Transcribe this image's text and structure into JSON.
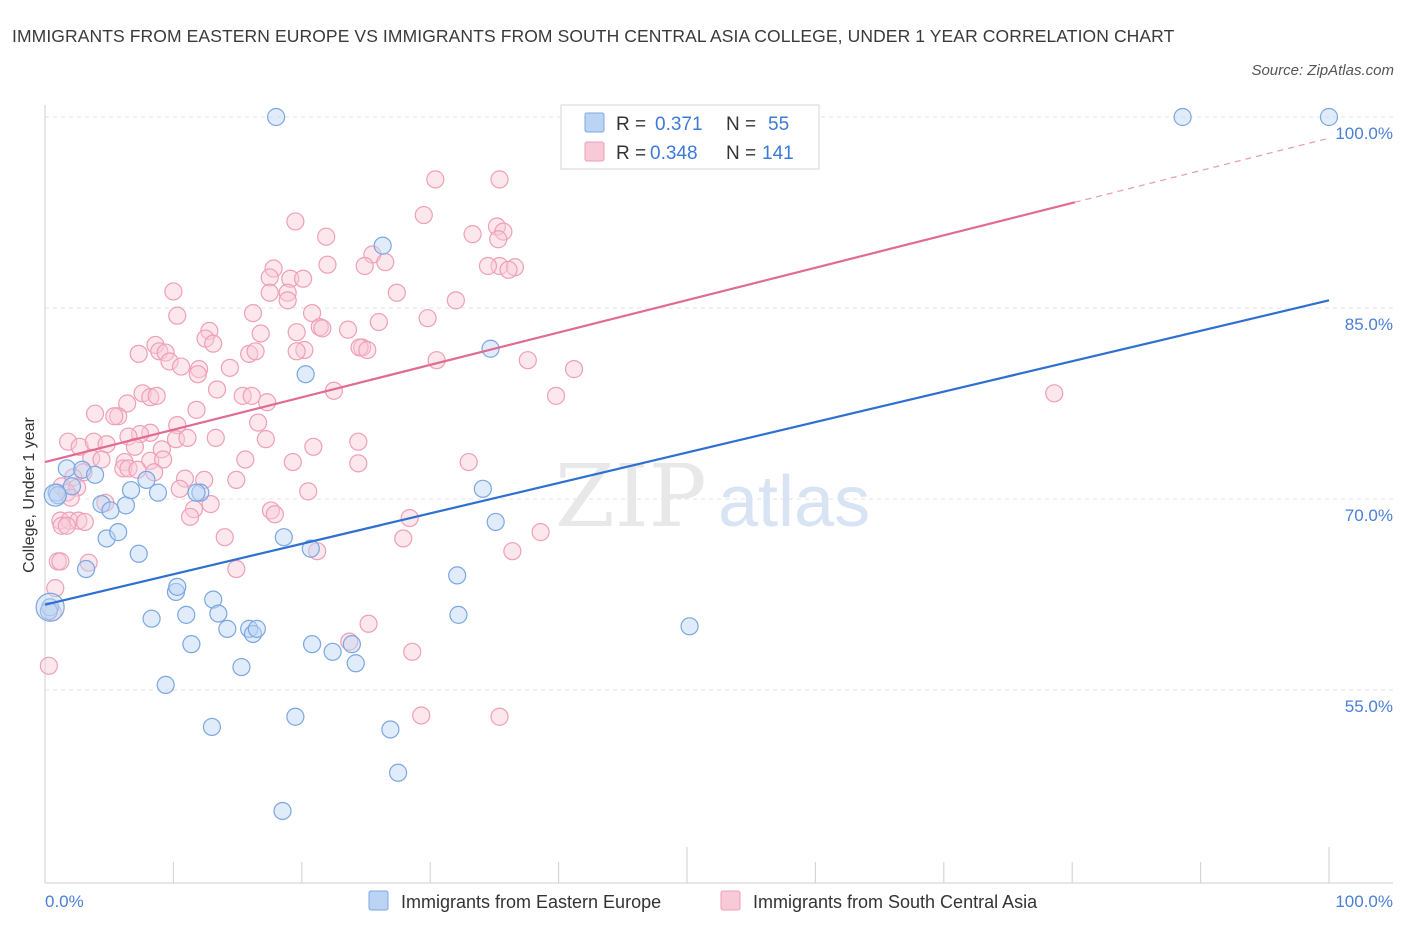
{
  "title": "IMMIGRANTS FROM EASTERN EUROPE VS IMMIGRANTS FROM SOUTH CENTRAL ASIA COLLEGE, UNDER 1 YEAR CORRELATION CHART",
  "source": "Source: ZipAtlas.com",
  "watermark": {
    "part1": "ZIP",
    "part2": "atlas"
  },
  "legend": {
    "r_label": "R =",
    "n_label": "N =",
    "rows": [
      {
        "r": "0.371",
        "n": "55",
        "color": "#a9c8f0"
      },
      {
        "r": "0.348",
        "n": "141",
        "color": "#f5b8c9"
      }
    ]
  },
  "bottom_legend": [
    {
      "label": "Immigrants from Eastern Europe",
      "color": "#a9c8f0"
    },
    {
      "label": "Immigrants from South Central Asia",
      "color": "#f5b8c9"
    }
  ],
  "chart_data": {
    "type": "scatter",
    "title": "IMMIGRANTS FROM EASTERN EUROPE VS IMMIGRANTS FROM SOUTH CENTRAL ASIA COLLEGE, UNDER 1 YEAR CORRELATION CHART",
    "xlabel": "",
    "ylabel": "College, Under 1 year",
    "xlim": [
      0,
      100
    ],
    "ylim": [
      40,
      100
    ],
    "x_tick_labels": [
      "0.0%",
      "100.0%"
    ],
    "y_ticks": [
      55,
      70,
      85,
      100
    ],
    "y_tick_labels": [
      "55.0%",
      "70.0%",
      "85.0%",
      "100.0%"
    ],
    "grid": true,
    "colors": {
      "blue": "#7aa7e3",
      "blue_line": "#2e6fd1",
      "pink": "#ef9fb8",
      "pink_line": "#e06b93"
    },
    "series": [
      {
        "name": "Immigrants from Eastern Europe",
        "color": "blue",
        "trend": {
          "x0": 0,
          "y0": 61.7,
          "x1": 100,
          "y1": 85.6
        },
        "points": [
          [
            18.0,
            100.0
          ],
          [
            88.6,
            100.0
          ],
          [
            100.0,
            100.0
          ],
          [
            1.7,
            72.4
          ],
          [
            2.1,
            71.0
          ],
          [
            0.9,
            70.5
          ],
          [
            2.9,
            72.3
          ],
          [
            3.9,
            71.9
          ],
          [
            4.4,
            69.6
          ],
          [
            6.3,
            69.5
          ],
          [
            5.1,
            69.1
          ],
          [
            6.7,
            70.7
          ],
          [
            7.9,
            71.5
          ],
          [
            8.8,
            70.5
          ],
          [
            12.1,
            70.5
          ],
          [
            11.8,
            70.5
          ],
          [
            3.2,
            64.5
          ],
          [
            4.8,
            66.9
          ],
          [
            5.7,
            67.4
          ],
          [
            7.3,
            65.7
          ],
          [
            10.2,
            62.7
          ],
          [
            10.3,
            63.1
          ],
          [
            13.1,
            62.1
          ],
          [
            13.5,
            61.0
          ],
          [
            14.2,
            59.8
          ],
          [
            15.9,
            59.8
          ],
          [
            16.2,
            59.4
          ],
          [
            16.5,
            59.8
          ],
          [
            8.3,
            60.6
          ],
          [
            11.0,
            60.9
          ],
          [
            11.4,
            58.6
          ],
          [
            15.3,
            56.8
          ],
          [
            18.6,
            67.0
          ],
          [
            20.7,
            66.1
          ],
          [
            20.8,
            58.6
          ],
          [
            22.4,
            58.0
          ],
          [
            23.9,
            58.6
          ],
          [
            24.2,
            57.1
          ],
          [
            9.4,
            55.4
          ],
          [
            19.5,
            52.9
          ],
          [
            13.0,
            52.1
          ],
          [
            26.9,
            51.9
          ],
          [
            27.5,
            48.5
          ],
          [
            18.5,
            45.5
          ],
          [
            32.1,
            64.0
          ],
          [
            32.2,
            60.9
          ],
          [
            34.1,
            70.8
          ],
          [
            35.1,
            68.2
          ],
          [
            34.7,
            81.8
          ],
          [
            20.3,
            79.8
          ],
          [
            26.3,
            89.9
          ],
          [
            50.2,
            60.0
          ],
          [
            0.4,
            61.5
          ],
          [
            1.0,
            70.3
          ],
          [
            0.3,
            61.2
          ]
        ]
      },
      {
        "name": "Immigrants from South Central Asia",
        "color": "pink",
        "trend": {
          "x0": 0,
          "y0": 72.9,
          "x1": 80.2,
          "y1": 93.3
        },
        "points": [
          [
            35.4,
            95.1
          ],
          [
            30.4,
            95.1
          ],
          [
            29.5,
            92.3
          ],
          [
            19.5,
            91.8
          ],
          [
            35.2,
            91.4
          ],
          [
            35.7,
            91.0
          ],
          [
            33.3,
            90.8
          ],
          [
            35.3,
            90.4
          ],
          [
            21.9,
            90.6
          ],
          [
            25.5,
            89.2
          ],
          [
            26.5,
            88.6
          ],
          [
            24.9,
            88.3
          ],
          [
            22.0,
            88.4
          ],
          [
            17.8,
            88.1
          ],
          [
            35.4,
            88.3
          ],
          [
            34.5,
            88.3
          ],
          [
            36.6,
            88.2
          ],
          [
            36.1,
            88.0
          ],
          [
            17.5,
            87.4
          ],
          [
            19.1,
            87.3
          ],
          [
            20.1,
            87.3
          ],
          [
            18.9,
            86.2
          ],
          [
            17.5,
            86.2
          ],
          [
            27.4,
            86.2
          ],
          [
            32.0,
            85.6
          ],
          [
            10.0,
            86.3
          ],
          [
            16.2,
            84.6
          ],
          [
            18.9,
            85.6
          ],
          [
            20.8,
            84.6
          ],
          [
            10.3,
            84.4
          ],
          [
            29.8,
            84.2
          ],
          [
            26.0,
            83.9
          ],
          [
            21.4,
            83.5
          ],
          [
            21.6,
            83.4
          ],
          [
            23.6,
            83.3
          ],
          [
            12.8,
            83.2
          ],
          [
            12.5,
            82.6
          ],
          [
            16.8,
            83.0
          ],
          [
            13.1,
            82.2
          ],
          [
            19.6,
            83.1
          ],
          [
            8.6,
            82.1
          ],
          [
            8.9,
            81.6
          ],
          [
            7.3,
            81.4
          ],
          [
            9.4,
            81.5
          ],
          [
            15.9,
            81.4
          ],
          [
            16.4,
            81.6
          ],
          [
            20.2,
            81.7
          ],
          [
            19.6,
            81.6
          ],
          [
            24.7,
            81.9
          ],
          [
            24.5,
            81.9
          ],
          [
            25.1,
            81.7
          ],
          [
            30.5,
            80.9
          ],
          [
            37.6,
            80.9
          ],
          [
            9.7,
            80.8
          ],
          [
            10.6,
            80.4
          ],
          [
            12.0,
            80.2
          ],
          [
            14.4,
            80.3
          ],
          [
            11.9,
            79.8
          ],
          [
            41.2,
            80.2
          ],
          [
            39.8,
            78.1
          ],
          [
            78.6,
            78.3
          ],
          [
            13.4,
            78.6
          ],
          [
            15.4,
            78.1
          ],
          [
            16.1,
            78.1
          ],
          [
            22.5,
            78.5
          ],
          [
            7.6,
            78.3
          ],
          [
            8.2,
            78.0
          ],
          [
            8.7,
            78.1
          ],
          [
            17.3,
            77.6
          ],
          [
            11.8,
            77.0
          ],
          [
            6.4,
            77.5
          ],
          [
            5.7,
            76.5
          ],
          [
            3.9,
            76.7
          ],
          [
            5.4,
            76.5
          ],
          [
            16.6,
            76.0
          ],
          [
            10.3,
            75.8
          ],
          [
            8.2,
            75.2
          ],
          [
            7.4,
            75.1
          ],
          [
            6.5,
            74.9
          ],
          [
            10.2,
            74.7
          ],
          [
            11.1,
            74.8
          ],
          [
            13.3,
            74.8
          ],
          [
            17.2,
            74.7
          ],
          [
            24.4,
            74.5
          ],
          [
            1.8,
            74.5
          ],
          [
            2.7,
            74.1
          ],
          [
            3.8,
            74.5
          ],
          [
            4.8,
            74.3
          ],
          [
            20.9,
            74.1
          ],
          [
            7.0,
            74.1
          ],
          [
            9.1,
            73.9
          ],
          [
            3.6,
            73.2
          ],
          [
            4.4,
            73.1
          ],
          [
            6.2,
            72.9
          ],
          [
            8.2,
            73.0
          ],
          [
            9.2,
            73.1
          ],
          [
            15.6,
            73.1
          ],
          [
            19.3,
            72.9
          ],
          [
            24.4,
            72.8
          ],
          [
            33.0,
            72.9
          ],
          [
            6.1,
            72.4
          ],
          [
            6.5,
            72.4
          ],
          [
            7.2,
            72.3
          ],
          [
            8.5,
            72.1
          ],
          [
            3.0,
            72.1
          ],
          [
            2.2,
            71.7
          ],
          [
            10.9,
            71.6
          ],
          [
            12.4,
            71.5
          ],
          [
            14.9,
            71.5
          ],
          [
            1.3,
            71.0
          ],
          [
            2.5,
            70.9
          ],
          [
            1.7,
            70.5
          ],
          [
            10.5,
            70.8
          ],
          [
            20.5,
            70.6
          ],
          [
            2.0,
            70.1
          ],
          [
            4.7,
            69.7
          ],
          [
            12.9,
            69.6
          ],
          [
            11.6,
            69.2
          ],
          [
            17.6,
            69.1
          ],
          [
            17.9,
            68.8
          ],
          [
            11.3,
            68.6
          ],
          [
            28.4,
            68.5
          ],
          [
            1.2,
            68.3
          ],
          [
            1.9,
            68.3
          ],
          [
            2.6,
            68.3
          ],
          [
            3.1,
            68.2
          ],
          [
            1.3,
            67.9
          ],
          [
            1.7,
            67.9
          ],
          [
            14.0,
            67.0
          ],
          [
            27.9,
            66.9
          ],
          [
            38.6,
            67.4
          ],
          [
            21.2,
            65.9
          ],
          [
            36.4,
            65.9
          ],
          [
            1.0,
            65.1
          ],
          [
            1.2,
            65.1
          ],
          [
            3.4,
            65.0
          ],
          [
            14.9,
            64.5
          ],
          [
            0.8,
            63.0
          ],
          [
            0.6,
            61.1
          ],
          [
            25.2,
            60.2
          ],
          [
            23.7,
            58.8
          ],
          [
            28.6,
            58.0
          ],
          [
            29.3,
            53.0
          ],
          [
            35.4,
            52.9
          ],
          [
            0.3,
            56.9
          ]
        ]
      }
    ]
  }
}
